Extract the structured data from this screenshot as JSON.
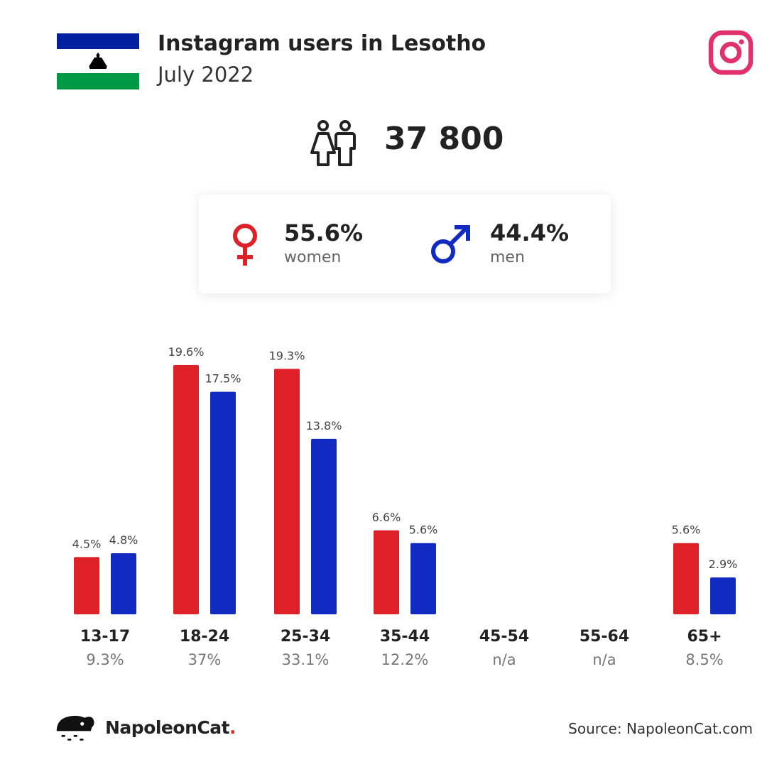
{
  "header": {
    "title": "Instagram users in Lesotho",
    "subtitle": "July 2022"
  },
  "total_users": "37 800",
  "gender": {
    "women": {
      "pct": "55.6%",
      "label": "women"
    },
    "men": {
      "pct": "44.4%",
      "label": "men"
    }
  },
  "colors": {
    "women": "#dd2127",
    "men": "#102ac2",
    "instagram": "#e1306c",
    "flag_blue": "#00209f",
    "flag_green": "#009a44"
  },
  "chart_data": {
    "type": "bar",
    "categories": [
      "13-17",
      "18-24",
      "25-34",
      "35-44",
      "45-54",
      "55-64",
      "65+"
    ],
    "category_shares": [
      "9.3%",
      "37%",
      "33.1%",
      "12.2%",
      "n/a",
      "n/a",
      "8.5%"
    ],
    "series": [
      {
        "name": "women",
        "values": [
          4.5,
          19.6,
          19.3,
          6.6,
          null,
          null,
          5.6
        ]
      },
      {
        "name": "men",
        "values": [
          4.8,
          17.5,
          13.8,
          5.6,
          null,
          null,
          2.9
        ]
      }
    ],
    "ylim": [
      0,
      19.6
    ]
  },
  "footer": {
    "brand": "NapoleonCat",
    "brand_dot": ".",
    "source": "Source: NapoleonCat.com"
  }
}
